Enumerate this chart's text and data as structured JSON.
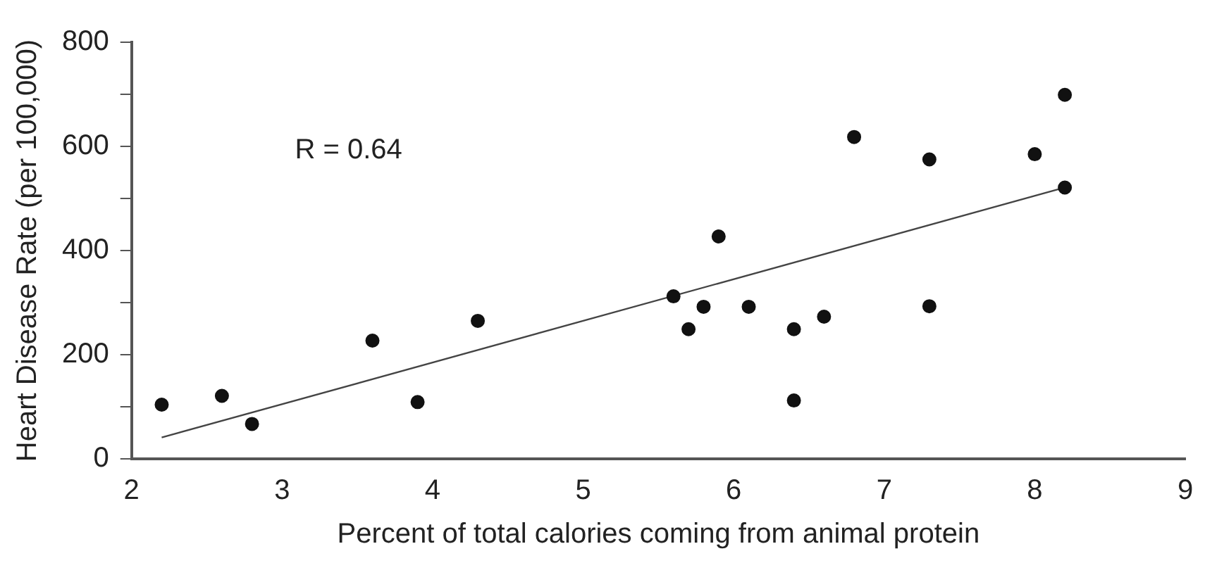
{
  "chart_data": {
    "type": "scatter",
    "xlabel": "Percent of total calories coming from animal protein",
    "ylabel": "Heart Disease Rate (per 100,000)",
    "annotations": [
      "R = 0.64"
    ],
    "x": [
      2.2,
      2.6,
      2.8,
      3.6,
      3.9,
      4.3,
      5.6,
      5.7,
      5.8,
      5.9,
      6.1,
      6.4,
      6.4,
      6.6,
      6.8,
      7.3,
      7.3,
      8.0,
      8.2,
      8.2
    ],
    "series": [
      {
        "type": "scatter",
        "color": "#111111",
        "values": [
          104,
          121,
          67,
          227,
          109,
          265,
          312,
          249,
          292,
          427,
          292,
          249,
          112,
          273,
          618,
          575,
          293,
          585,
          699,
          521
        ]
      },
      {
        "type": "line",
        "color": "#444444",
        "x": [
          2.2,
          8.2
        ],
        "values": [
          41,
          521
        ],
        "marker": "none"
      }
    ],
    "xlim": [
      2,
      9
    ],
    "xticks": [
      2,
      3,
      4,
      5,
      6,
      7,
      8,
      9
    ],
    "ylim": [
      0,
      800
    ],
    "yticks": [
      0,
      {
        "value": 100,
        "label": null
      },
      200,
      {
        "value": 300,
        "label": null
      },
      400,
      {
        "value": 500,
        "label": null
      },
      600,
      {
        "value": 700,
        "label": null
      },
      800
    ],
    "grid": false,
    "legend": false,
    "marker": "circle"
  }
}
